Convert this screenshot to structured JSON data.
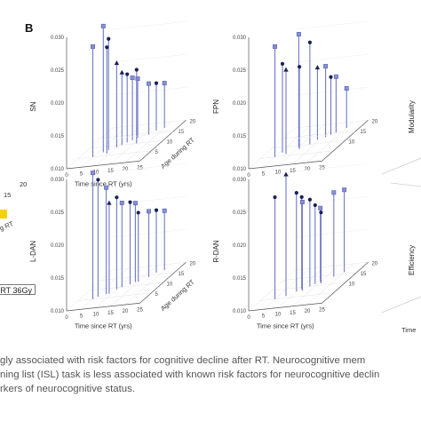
{
  "figure": {
    "panel_label": "B",
    "left_fragments": {
      "tick_15": "15",
      "tick_20": "20",
      "axis_fragment": "g RT",
      "legend_fragment": "RT 36Gy"
    },
    "caption_lines": [
      "gly associated with risk factors for cognitive decline after RT. Neurocognitive mem",
      "ning list (ISL) task is less associated with known risk factors for neurocognitive declin",
      "rkers of neurocognitive status."
    ],
    "partial_right_labels": [
      "Modularity",
      "Efficiency",
      "Time"
    ]
  },
  "colors": {
    "stem": "#6f78c4",
    "circle": "#1a1f55",
    "triangle": "#1a1f55",
    "square": "#8790d6"
  },
  "chart_data": [
    {
      "type": "scatter",
      "subtype": "3d-stem",
      "ylabel": "SN",
      "xlabel": "Time since RT (yrs)",
      "depth_label": "Age during RT",
      "x_ticks": [
        "0",
        "5",
        "10",
        "15",
        "20",
        "25"
      ],
      "depth_ticks": [
        "5",
        "10",
        "15",
        "20"
      ],
      "z_ticks": [
        "0.010",
        "0.015",
        "0.020",
        "0.025",
        "0.030"
      ],
      "zlim": [
        0.01,
        0.03
      ],
      "points": [
        {
          "x": 5,
          "age": 5,
          "z": 0.0268,
          "marker": "square"
        },
        {
          "x": 7,
          "age": 7,
          "z": 0.0292,
          "marker": "square"
        },
        {
          "x": 8,
          "age": 8,
          "z": 0.0269,
          "marker": "circle"
        },
        {
          "x": 9,
          "age": 6,
          "z": 0.0262,
          "marker": "circle"
        },
        {
          "x": 10,
          "age": 9,
          "z": 0.0228,
          "marker": "triangle"
        },
        {
          "x": 11,
          "age": 10,
          "z": 0.021,
          "marker": "triangle"
        },
        {
          "x": 12,
          "age": 11,
          "z": 0.0204,
          "marker": "circle"
        },
        {
          "x": 13,
          "age": 12,
          "z": 0.0195,
          "marker": "square"
        },
        {
          "x": 14,
          "age": 13,
          "z": 0.019,
          "marker": "square"
        },
        {
          "x": 16,
          "age": 10,
          "z": 0.0212,
          "marker": "circle"
        },
        {
          "x": 17,
          "age": 14,
          "z": 0.0178,
          "marker": "square"
        },
        {
          "x": 18,
          "age": 16,
          "z": 0.0172,
          "marker": "circle"
        },
        {
          "x": 20,
          "age": 17,
          "z": 0.0168,
          "marker": "square"
        }
      ]
    },
    {
      "type": "scatter",
      "subtype": "3d-stem",
      "ylabel": "FPN",
      "xlabel": "",
      "depth_label": "",
      "x_ticks": [
        "0",
        "5",
        "10",
        "15",
        "20",
        "25"
      ],
      "depth_ticks": [
        "10",
        "15",
        "20"
      ],
      "z_ticks": [
        "0.010",
        "0.015",
        "0.020",
        "0.025",
        "0.030"
      ],
      "zlim": [
        0.01,
        0.03
      ],
      "points": [
        {
          "x": 5,
          "age": 5,
          "z": 0.0268,
          "marker": "square"
        },
        {
          "x": 6,
          "age": 7,
          "z": 0.0235,
          "marker": "circle"
        },
        {
          "x": 8,
          "age": 6,
          "z": 0.0228,
          "marker": "triangle"
        },
        {
          "x": 10,
          "age": 9,
          "z": 0.0272,
          "marker": "square"
        },
        {
          "x": 11,
          "age": 8,
          "z": 0.0225,
          "marker": "circle"
        },
        {
          "x": 13,
          "age": 10,
          "z": 0.0255,
          "marker": "circle"
        },
        {
          "x": 14,
          "age": 12,
          "z": 0.021,
          "marker": "triangle"
        },
        {
          "x": 16,
          "age": 13,
          "z": 0.0208,
          "marker": "square"
        },
        {
          "x": 17,
          "age": 14,
          "z": 0.0188,
          "marker": "circle"
        },
        {
          "x": 18,
          "age": 15,
          "z": 0.0185,
          "marker": "square"
        },
        {
          "x": 20,
          "age": 17,
          "z": 0.016,
          "marker": "square"
        }
      ]
    },
    {
      "type": "scatter",
      "subtype": "3d-stem",
      "ylabel": "L-DAN",
      "xlabel": "Time since RT (yrs)",
      "depth_label": "Age during RT",
      "x_ticks": [
        "0",
        "5",
        "10",
        "15",
        "20",
        "25"
      ],
      "depth_ticks": [
        "5",
        "10",
        "15",
        "20"
      ],
      "z_ticks": [
        "0.010",
        "0.015",
        "0.020",
        "0.025",
        "0.030"
      ],
      "zlim": [
        0.01,
        0.03
      ],
      "points": [
        {
          "x": 5,
          "age": 5,
          "z": 0.0292,
          "marker": "square"
        },
        {
          "x": 6,
          "age": 6,
          "z": 0.0278,
          "marker": "circle"
        },
        {
          "x": 8,
          "age": 7,
          "z": 0.0262,
          "marker": "square"
        },
        {
          "x": 9,
          "age": 7,
          "z": 0.0238,
          "marker": "triangle"
        },
        {
          "x": 10,
          "age": 9,
          "z": 0.024,
          "marker": "circle"
        },
        {
          "x": 11,
          "age": 10,
          "z": 0.0228,
          "marker": "square"
        },
        {
          "x": 13,
          "age": 11,
          "z": 0.0225,
          "marker": "circle"
        },
        {
          "x": 14,
          "age": 12,
          "z": 0.022,
          "marker": "square"
        },
        {
          "x": 15,
          "age": 12,
          "z": 0.0205,
          "marker": "circle"
        },
        {
          "x": 17,
          "age": 14,
          "z": 0.02,
          "marker": "square"
        },
        {
          "x": 18,
          "age": 16,
          "z": 0.0195,
          "marker": "circle"
        },
        {
          "x": 20,
          "age": 17,
          "z": 0.019,
          "marker": "square"
        }
      ]
    },
    {
      "type": "scatter",
      "subtype": "3d-stem",
      "ylabel": "R-DAN",
      "xlabel": "Time since RT (yrs)",
      "depth_label": "",
      "x_ticks": [
        "0",
        "5",
        "10",
        "15",
        "20",
        "25"
      ],
      "depth_ticks": [
        "10",
        "15",
        "20"
      ],
      "z_ticks": [
        "0.010",
        "0.015",
        "0.020",
        "0.025",
        "0.030"
      ],
      "zlim": [
        0.01,
        0.03
      ],
      "points": [
        {
          "x": 5,
          "age": 5,
          "z": 0.0255,
          "marker": "circle"
        },
        {
          "x": 8,
          "age": 6,
          "z": 0.0285,
          "marker": "triangle"
        },
        {
          "x": 10,
          "age": 8,
          "z": 0.025,
          "marker": "circle"
        },
        {
          "x": 11,
          "age": 9,
          "z": 0.024,
          "marker": "circle"
        },
        {
          "x": 12,
          "age": 8,
          "z": 0.0235,
          "marker": "square"
        },
        {
          "x": 13,
          "age": 10,
          "z": 0.0232,
          "marker": "circle"
        },
        {
          "x": 14,
          "age": 11,
          "z": 0.022,
          "marker": "circle"
        },
        {
          "x": 15,
          "age": 12,
          "z": 0.0212,
          "marker": "square"
        },
        {
          "x": 16,
          "age": 11,
          "z": 0.0208,
          "marker": "circle"
        },
        {
          "x": 18,
          "age": 14,
          "z": 0.0228,
          "marker": "square"
        },
        {
          "x": 20,
          "age": 16,
          "z": 0.0225,
          "marker": "square"
        }
      ]
    }
  ]
}
